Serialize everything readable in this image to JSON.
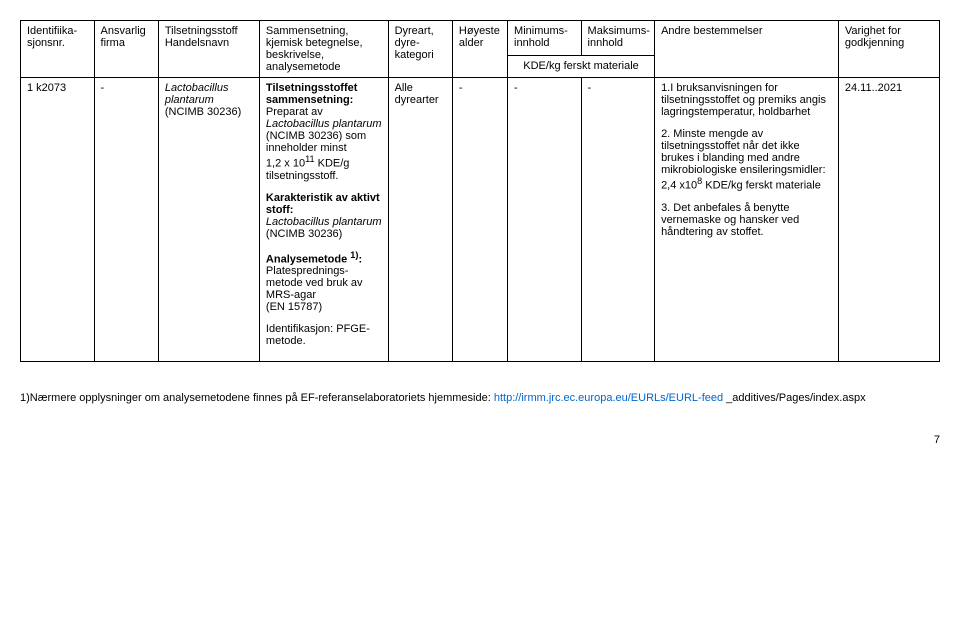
{
  "headers": {
    "id": "Identifiika-sjonsnr.",
    "firma": "Ansvarlig firma",
    "stoff": "Tilsetningsstoff Handelsnavn",
    "sammen": "Sammensetning, kjemisk betegnelse, beskrivelse, analysemetode",
    "dyreart": "Dyreart, dyre-kategori",
    "alder": "Høyeste alder",
    "min": "Minimums-innhold",
    "max": "Maksimums-innhold",
    "sub": "KDE/kg ferskt materiale",
    "andre": "Andre bestemmelser",
    "varighet": "Varighet for godkjenning"
  },
  "row": {
    "id": "1 k2073",
    "firma": "-",
    "stoff_line1": "Lactobacillus plantarum",
    "stoff_line2": "(NCIMB 30236)",
    "sammen_h1": "Tilsetningsstoffet sammensetning:",
    "sammen_p1a": " Preparat av ",
    "sammen_p1b": "Lactobacillus plantarum",
    "sammen_p1c": " (NCIMB 30236) som inneholder minst",
    "sammen_p1d": "1,2 x 10",
    "sammen_p1e": "11",
    "sammen_p1f": " KDE/g tilsetningsstoff.",
    "sammen_h2": "Karakteristik av aktivt stoff:",
    "sammen_p2a": "Lactobacillus plantarum",
    "sammen_p2b": "(NCIMB 30236)",
    "sammen_h3a": "Analysemetode ",
    "sammen_h3b": "1)",
    "sammen_h3c": ":",
    "sammen_p3": "Platesprednings-metode ved bruk av MRS-agar",
    "sammen_p3b": "(EN 15787)",
    "sammen_p4": "Identifikasjon: PFGE-metode.",
    "dyreart": "Alle dyrearter",
    "alder": "-",
    "min": "-",
    "max": "-",
    "andre_1": "1.I bruksanvisningen for tilsetningsstoffet og premiks angis lagringstemperatur, holdbarhet",
    "andre_2a": "2. Minste mengde av tilsetningsstoffet når det ikke brukes i blanding med andre mikrobiologiske ensileringsmidler: 2,4 x10",
    "andre_2b": "8",
    "andre_2c": " KDE/kg ferskt materiale",
    "andre_3": "3. Det anbefales å benytte vernemaske og hansker ved håndtering av stoffet.",
    "varighet": "24.11..2021"
  },
  "footer": {
    "text1": "1)Nærmere opplysninger om analysemetodene finnes på EF-referanselaboratoriets hjemmeside: ",
    "link": "http://irmm.jrc.ec.europa.eu/EURLs/EURL-feed",
    "text2": " _additives/Pages/index.aspx"
  },
  "pagenum": "7"
}
